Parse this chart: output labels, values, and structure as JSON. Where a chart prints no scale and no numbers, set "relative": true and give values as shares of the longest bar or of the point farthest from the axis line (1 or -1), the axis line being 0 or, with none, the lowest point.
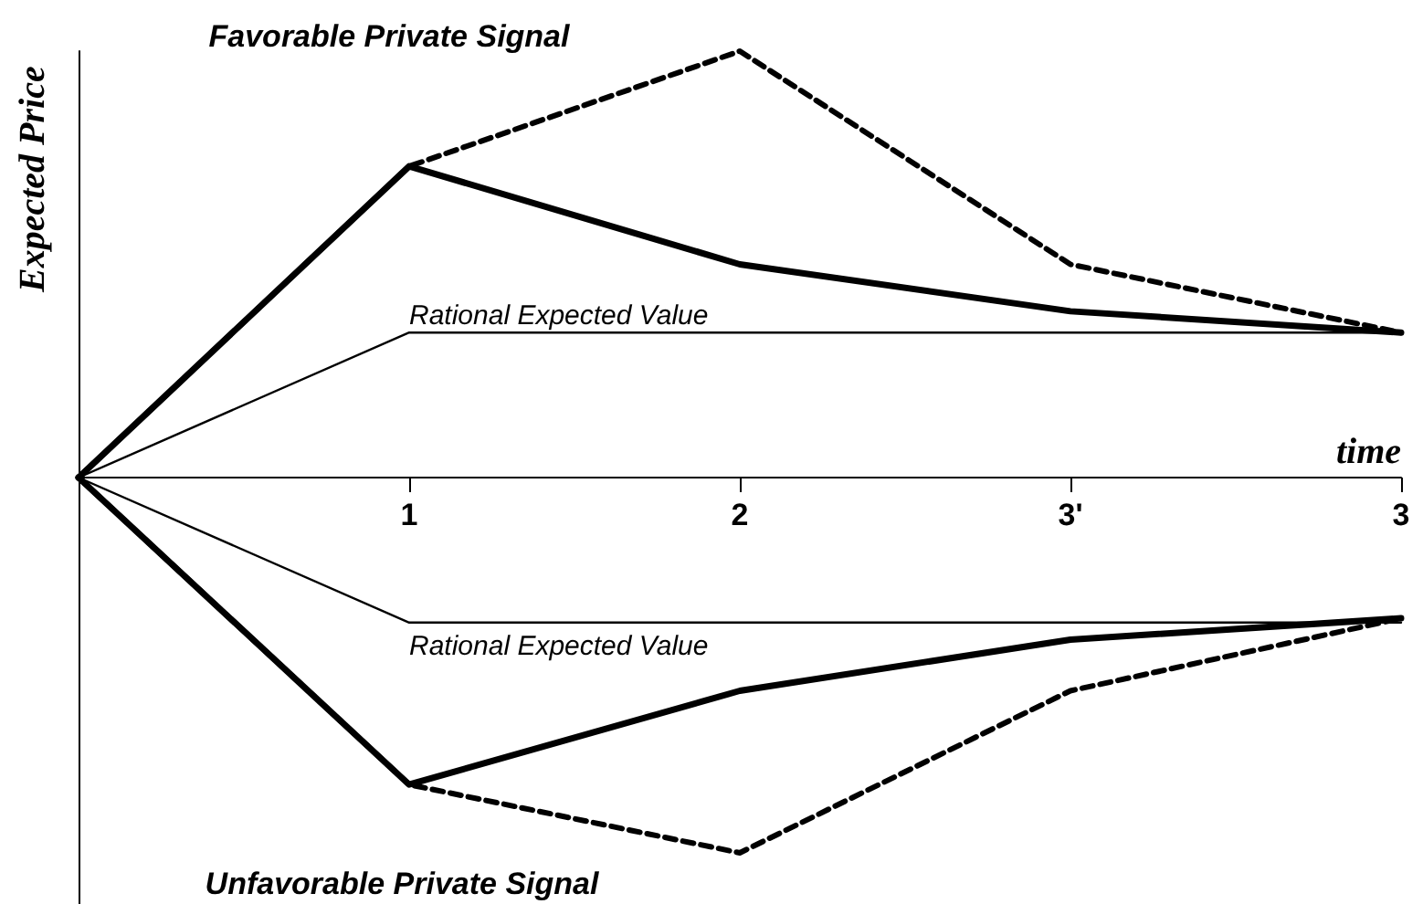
{
  "chart_data": {
    "type": "line",
    "relative": true,
    "xlabel": "time",
    "ylabel": "Expected Price",
    "categories": [
      null,
      "1",
      "2",
      "3'",
      "3"
    ],
    "series": [
      {
        "color": "#000000",
        "line_style": "solid",
        "values": [
          0,
          0.73,
          0.5,
          0.39,
          0.34
        ]
      },
      {
        "color": "#000000",
        "line_style": "dashed",
        "values": [
          0,
          0.73,
          1,
          0.5,
          0.34
        ]
      },
      {
        "color": "#000000",
        "line_style": "solid",
        "values": [
          0,
          0.34,
          0.34,
          0.34,
          0.34
        ]
      },
      {
        "color": "#000000",
        "line_style": "solid",
        "values": [
          0,
          -0.34,
          -0.34,
          -0.34,
          -0.34
        ]
      },
      {
        "color": "#000000",
        "line_style": "solid",
        "values": [
          0,
          -0.72,
          -0.5,
          -0.38,
          -0.33
        ]
      },
      {
        "color": "#000000",
        "line_style": "dashed",
        "values": [
          0,
          -0.72,
          -0.88,
          -0.5,
          -0.33
        ]
      }
    ],
    "annotations": [
      "Favorable Private Signal",
      {
        "text": "Rational Expected Value",
        "x": "1",
        "y": 0.34
      },
      {
        "text": "Rational Expected Value",
        "x": "1",
        "y": -0.34
      },
      "Unfavorable Private Signal"
    ],
    "grid": false,
    "marker": "none"
  }
}
